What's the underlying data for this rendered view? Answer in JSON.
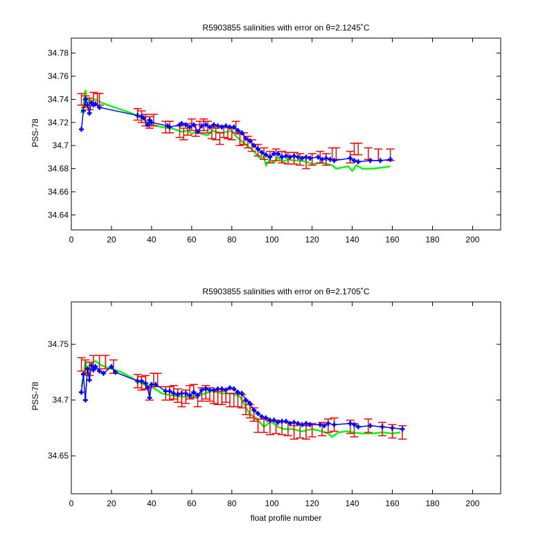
{
  "chart_data": [
    {
      "type": "scatter",
      "title": "R5903855 salinities with error on θ=2.1245˚C",
      "xlabel": "",
      "ylabel": "PSS-78",
      "xlim": [
        0,
        214
      ],
      "ylim": [
        34.627,
        34.793
      ],
      "xticks": [
        0,
        20,
        40,
        60,
        80,
        100,
        120,
        140,
        160,
        180,
        200
      ],
      "yticks": [
        34.64,
        34.66,
        34.68,
        34.7,
        34.72,
        34.74,
        34.76,
        34.78
      ],
      "ytick_labels": [
        "34.64",
        "34.66",
        "34.68",
        "34.7",
        "34.72",
        "34.74",
        "34.76",
        "34.78"
      ],
      "series": [
        {
          "kind": "line",
          "color": "#00ff00",
          "x": [
            5,
            6,
            7,
            8,
            9,
            10,
            12,
            15,
            20,
            25,
            30,
            35,
            38,
            40,
            45,
            50,
            55,
            58,
            60,
            62,
            65,
            68,
            70,
            72,
            75,
            78,
            80,
            82,
            84,
            86,
            88,
            90,
            92,
            94,
            96,
            97,
            99,
            101,
            103,
            105,
            108,
            111,
            114,
            117,
            120,
            125,
            130,
            132,
            135,
            138,
            140,
            142,
            145,
            150,
            155,
            159
          ],
          "y": [
            34.728,
            34.735,
            34.748,
            34.736,
            34.741,
            34.738,
            34.74,
            34.737,
            34.734,
            34.731,
            34.728,
            34.724,
            34.72,
            34.718,
            34.716,
            34.715,
            34.712,
            34.713,
            34.71,
            34.712,
            34.71,
            34.709,
            34.713,
            34.712,
            34.711,
            34.712,
            34.713,
            34.708,
            34.705,
            34.702,
            34.699,
            34.697,
            34.693,
            34.689,
            34.69,
            34.683,
            34.688,
            34.685,
            34.69,
            34.686,
            34.688,
            34.687,
            34.687,
            34.686,
            34.684,
            34.685,
            34.683,
            34.68,
            34.681,
            34.682,
            34.678,
            34.683,
            34.68,
            34.68,
            34.681,
            34.682
          ]
        },
        {
          "kind": "errorbar",
          "color": "#ff0000",
          "x": [
            5,
            7,
            9,
            11,
            13,
            14,
            33,
            35,
            37,
            39,
            41,
            47,
            49,
            54,
            56,
            58,
            60,
            62,
            64,
            66,
            68,
            70,
            72,
            74,
            76,
            78,
            80,
            82,
            84,
            86,
            88,
            90,
            93,
            96,
            99,
            102,
            105,
            108,
            111,
            114,
            117,
            120,
            124,
            127,
            130,
            132,
            139,
            141,
            143,
            148,
            153,
            159
          ],
          "y": [
            34.74,
            34.738,
            34.736,
            34.741,
            34.74,
            34.74,
            34.727,
            34.725,
            34.722,
            34.72,
            34.722,
            34.716,
            34.716,
            34.712,
            34.71,
            34.714,
            34.718,
            34.713,
            34.716,
            34.718,
            34.716,
            34.711,
            34.71,
            34.706,
            34.712,
            34.711,
            34.71,
            34.716,
            34.705,
            34.706,
            34.703,
            34.7,
            34.696,
            34.693,
            34.69,
            34.692,
            34.69,
            34.689,
            34.689,
            34.688,
            34.685,
            34.688,
            34.69,
            34.688,
            34.693,
            34.693,
            34.69,
            34.697,
            34.697,
            34.693,
            34.692,
            34.692
          ],
          "err": 0.005
        },
        {
          "kind": "markers",
          "color": "#0000ff",
          "x": [
            5,
            6,
            7,
            8,
            9,
            10,
            11,
            12,
            14,
            33,
            35,
            36,
            38,
            39,
            40,
            48,
            49,
            54,
            55,
            57,
            59,
            61,
            63,
            65,
            67,
            69,
            71,
            73,
            75,
            77,
            79,
            81,
            83,
            85,
            87,
            89,
            91,
            93,
            95,
            97,
            99,
            101,
            103,
            105,
            107,
            109,
            111,
            113,
            115,
            117,
            119,
            123,
            125,
            127,
            129,
            131,
            139,
            141,
            143,
            149,
            154,
            159
          ],
          "y": [
            34.714,
            34.73,
            34.74,
            34.735,
            34.728,
            34.737,
            34.735,
            34.736,
            34.733,
            34.726,
            34.725,
            34.724,
            34.718,
            34.722,
            34.72,
            34.717,
            34.716,
            34.718,
            34.719,
            34.718,
            34.716,
            34.718,
            34.712,
            34.717,
            34.718,
            34.716,
            34.718,
            34.717,
            34.716,
            34.717,
            34.716,
            34.716,
            34.713,
            34.711,
            34.706,
            34.704,
            34.7,
            34.697,
            34.694,
            34.692,
            34.69,
            34.693,
            34.693,
            34.69,
            34.691,
            34.69,
            34.691,
            34.69,
            34.689,
            34.69,
            34.689,
            34.69,
            34.688,
            34.689,
            34.688,
            34.687,
            34.689,
            34.687,
            34.686,
            34.687,
            34.687,
            34.688
          ]
        }
      ]
    },
    {
      "type": "scatter",
      "title": "R5903855 salinities with error on θ=2.1705˚C",
      "xlabel": "float profile number",
      "ylabel": "PSS-78",
      "xlim": [
        0,
        214
      ],
      "ylim": [
        34.616,
        34.788
      ],
      "xticks": [
        0,
        20,
        40,
        60,
        80,
        100,
        120,
        140,
        160,
        180,
        200
      ],
      "yticks": [
        34.65,
        34.7,
        34.75
      ],
      "ytick_labels": [
        "34.65",
        "34.7",
        "34.75"
      ],
      "series": [
        {
          "kind": "line",
          "color": "#00ff00",
          "x": [
            5,
            6,
            7,
            8,
            9,
            10,
            12,
            15,
            20,
            25,
            30,
            35,
            40,
            45,
            50,
            55,
            60,
            65,
            70,
            75,
            80,
            84,
            86,
            88,
            90,
            92,
            94,
            96,
            98,
            100,
            103,
            106,
            110,
            115,
            120,
            125,
            128,
            130,
            133,
            137,
            140,
            145,
            150,
            155,
            160,
            164
          ],
          "y": [
            34.712,
            34.72,
            34.735,
            34.725,
            34.73,
            34.733,
            34.735,
            34.731,
            34.728,
            34.725,
            34.72,
            34.715,
            34.712,
            34.706,
            34.704,
            34.703,
            34.703,
            34.705,
            34.708,
            34.706,
            34.706,
            34.703,
            34.697,
            34.69,
            34.686,
            34.684,
            34.68,
            34.676,
            34.679,
            34.68,
            34.676,
            34.674,
            34.674,
            34.672,
            34.674,
            34.672,
            34.67,
            34.667,
            34.671,
            34.672,
            34.671,
            34.67,
            34.67,
            34.671,
            34.67,
            34.671
          ]
        },
        {
          "kind": "errorbar",
          "color": "#ff0000",
          "x": [
            5,
            7,
            9,
            11,
            14,
            17,
            21,
            33,
            35,
            37,
            39,
            41,
            43,
            47,
            49,
            51,
            53,
            55,
            57,
            59,
            61,
            63,
            65,
            67,
            69,
            71,
            73,
            75,
            77,
            79,
            81,
            83,
            85,
            87,
            89,
            91,
            93,
            96,
            99,
            102,
            105,
            108,
            111,
            114,
            117,
            120,
            125,
            128,
            131,
            139,
            141,
            148,
            155,
            160,
            165
          ],
          "y": [
            34.732,
            34.73,
            34.728,
            34.734,
            34.734,
            34.734,
            34.73,
            34.717,
            34.715,
            34.716,
            34.706,
            34.718,
            34.718,
            34.706,
            34.706,
            34.707,
            34.704,
            34.7,
            34.703,
            34.707,
            34.708,
            34.7,
            34.705,
            34.707,
            34.705,
            34.703,
            34.702,
            34.702,
            34.704,
            34.7,
            34.7,
            34.7,
            34.699,
            34.693,
            34.69,
            34.687,
            34.677,
            34.677,
            34.675,
            34.676,
            34.675,
            34.674,
            34.671,
            34.672,
            34.671,
            34.673,
            34.674,
            34.677,
            34.678,
            34.676,
            34.673,
            34.677,
            34.674,
            34.672,
            34.671
          ],
          "err": 0.006
        },
        {
          "kind": "markers",
          "color": "#0000ff",
          "x": [
            5,
            6,
            7,
            8,
            9,
            10,
            11,
            12,
            14,
            16,
            20,
            22,
            33,
            35,
            37,
            38,
            39,
            40,
            42,
            47,
            49,
            51,
            53,
            55,
            57,
            59,
            61,
            63,
            65,
            67,
            69,
            71,
            73,
            75,
            77,
            79,
            81,
            83,
            85,
            87,
            89,
            91,
            93,
            95,
            97,
            99,
            101,
            103,
            105,
            107,
            109,
            111,
            113,
            115,
            117,
            119,
            124,
            126,
            128,
            131,
            139,
            141,
            143,
            149,
            155,
            160,
            165
          ],
          "y": [
            34.707,
            34.723,
            34.7,
            34.728,
            34.718,
            34.731,
            34.727,
            34.73,
            34.726,
            34.724,
            34.73,
            34.725,
            34.717,
            34.717,
            34.715,
            34.711,
            34.702,
            34.714,
            34.714,
            34.708,
            34.708,
            34.706,
            34.705,
            34.706,
            34.706,
            34.704,
            34.707,
            34.704,
            34.709,
            34.71,
            34.709,
            34.709,
            34.71,
            34.71,
            34.709,
            34.711,
            34.71,
            34.707,
            34.706,
            34.7,
            34.697,
            34.691,
            34.688,
            34.685,
            34.684,
            34.682,
            34.682,
            34.68,
            34.681,
            34.681,
            34.679,
            34.68,
            34.679,
            34.678,
            34.679,
            34.678,
            34.678,
            34.677,
            34.679,
            34.678,
            34.679,
            34.678,
            34.676,
            34.677,
            34.676,
            34.675,
            34.674
          ]
        }
      ]
    }
  ]
}
